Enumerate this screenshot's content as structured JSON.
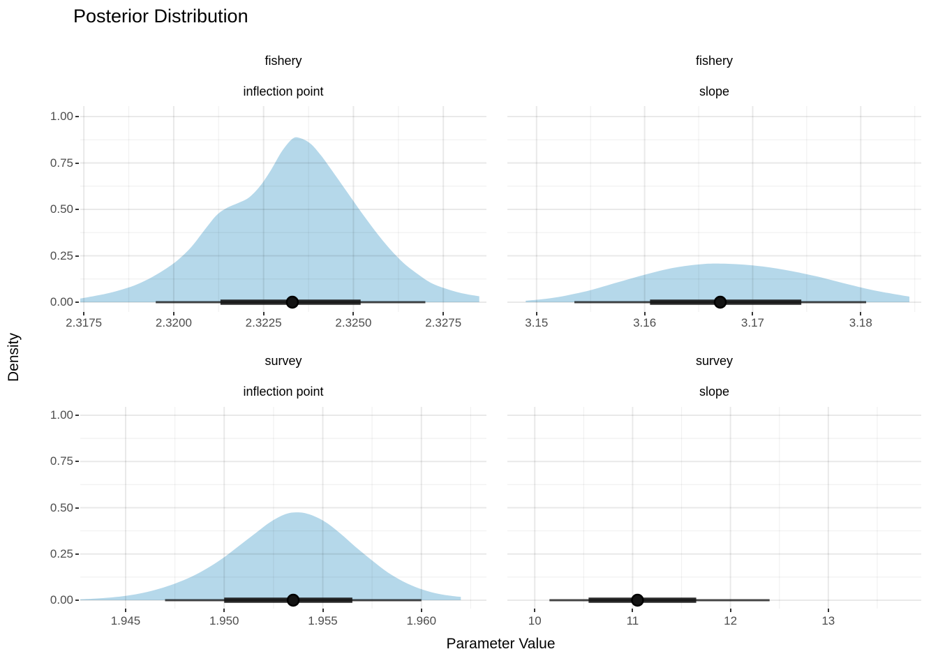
{
  "title": "Posterior Distribution",
  "chart_data": {
    "type": "area",
    "title": "Posterior Distribution",
    "xlabel": "Parameter Value",
    "ylabel": "Density",
    "legend": "none",
    "grid": true,
    "y_tick_values": [
      0,
      0.25,
      0.5,
      0.75,
      1.0
    ],
    "y_tick_labels": [
      "0.00",
      "0.25",
      "0.50",
      "0.75",
      "1.00"
    ],
    "ylim": [
      0,
      1.0
    ],
    "colors": {
      "density_fill": "rgba(160,205,228,0.78)",
      "interval_thin": "rgba(22,22,22,0.78)",
      "interval_thick": "rgba(22,22,22,0.9)",
      "point": "#131313",
      "grid_major": "rgba(0,0,0,0.085)",
      "grid_minor": "rgba(0,0,0,0.055)",
      "tick_text": "#4d4d4d"
    },
    "panels": [
      {
        "facet_row": "fishery",
        "facet_col": "inflection point",
        "x_range": [
          2.3174,
          2.3287
        ],
        "x_ticks": [
          2.3175,
          2.32,
          2.3225,
          2.325,
          2.3275
        ],
        "x_tick_labels": [
          "2.3175",
          "2.3200",
          "2.3225",
          "2.3250",
          "2.3275"
        ],
        "density_x": [
          2.3174,
          2.3177,
          2.3181,
          2.3185,
          2.3189,
          2.3193,
          2.3197,
          2.3201,
          2.3205,
          2.3209,
          2.3212,
          2.3215,
          2.3218,
          2.3221,
          2.3224,
          2.3227,
          2.323,
          2.3233,
          2.3235,
          2.3238,
          2.3241,
          2.3244,
          2.3248,
          2.3252,
          2.3256,
          2.326,
          2.3264,
          2.3268,
          2.3272,
          2.3277,
          2.3281,
          2.3285
        ],
        "density_y": [
          0.02,
          0.03,
          0.045,
          0.065,
          0.09,
          0.125,
          0.17,
          0.225,
          0.3,
          0.4,
          0.47,
          0.51,
          0.535,
          0.565,
          0.625,
          0.71,
          0.81,
          0.88,
          0.885,
          0.855,
          0.79,
          0.71,
          0.6,
          0.49,
          0.385,
          0.29,
          0.21,
          0.15,
          0.1,
          0.065,
          0.045,
          0.032
        ],
        "point_estimate": 2.3233,
        "interval_inner": [
          2.3213,
          2.3252
        ],
        "interval_outer": [
          2.3195,
          2.327
        ]
      },
      {
        "facet_row": "fishery",
        "facet_col": "slope",
        "x_range": [
          3.1473,
          3.1856
        ],
        "x_ticks": [
          3.15,
          3.16,
          3.17,
          3.18
        ],
        "x_tick_labels": [
          "3.15",
          "3.16",
          "3.17",
          "3.18"
        ],
        "density_x": [
          3.149,
          3.1505,
          3.152,
          3.1535,
          3.155,
          3.1565,
          3.158,
          3.1595,
          3.161,
          3.1625,
          3.164,
          3.1655,
          3.167,
          3.1685,
          3.17,
          3.1715,
          3.173,
          3.1745,
          3.176,
          3.1775,
          3.179,
          3.1805,
          3.182,
          3.1835,
          3.1845
        ],
        "density_y": [
          0.008,
          0.016,
          0.028,
          0.045,
          0.065,
          0.09,
          0.115,
          0.14,
          0.163,
          0.183,
          0.197,
          0.206,
          0.208,
          0.205,
          0.198,
          0.188,
          0.174,
          0.157,
          0.138,
          0.116,
          0.094,
          0.073,
          0.055,
          0.04,
          0.03
        ],
        "point_estimate": 3.167,
        "interval_inner": [
          3.1605,
          3.1745
        ],
        "interval_outer": [
          3.1535,
          3.1805
        ]
      },
      {
        "facet_row": "survey",
        "facet_col": "inflection point",
        "x_range": [
          1.9427,
          1.9633
        ],
        "x_ticks": [
          1.945,
          1.95,
          1.955,
          1.96
        ],
        "x_tick_labels": [
          "1.945",
          "1.950",
          "1.955",
          "1.960"
        ],
        "density_x": [
          1.9427,
          1.9435,
          1.9443,
          1.9451,
          1.9459,
          1.9467,
          1.9475,
          1.9483,
          1.9491,
          1.9499,
          1.9507,
          1.9515,
          1.9523,
          1.9531,
          1.9537,
          1.9543,
          1.9551,
          1.9559,
          1.9567,
          1.9575,
          1.9583,
          1.9591,
          1.9599,
          1.9607,
          1.9615,
          1.962
        ],
        "density_y": [
          0.005,
          0.009,
          0.015,
          0.025,
          0.04,
          0.062,
          0.09,
          0.125,
          0.17,
          0.225,
          0.29,
          0.355,
          0.42,
          0.465,
          0.475,
          0.465,
          0.425,
          0.36,
          0.285,
          0.215,
          0.15,
          0.1,
          0.063,
          0.038,
          0.024,
          0.018
        ],
        "point_estimate": 1.9535,
        "interval_inner": [
          1.95,
          1.9565
        ],
        "interval_outer": [
          1.947,
          1.96
        ]
      },
      {
        "facet_row": "survey",
        "facet_col": "slope",
        "x_range": [
          9.72,
          13.95
        ],
        "x_ticks": [
          10,
          11,
          12,
          13
        ],
        "x_tick_labels": [
          "10",
          "11",
          "12",
          "13"
        ],
        "density_x": [],
        "density_y": [],
        "point_estimate": 11.05,
        "interval_inner": [
          10.55,
          11.65
        ],
        "interval_outer": [
          10.15,
          12.4
        ]
      }
    ]
  }
}
